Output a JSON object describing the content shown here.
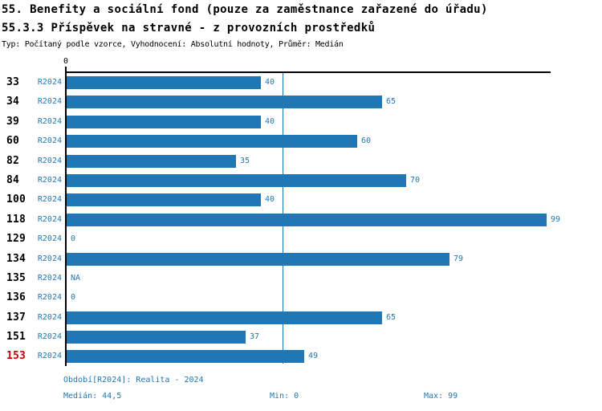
{
  "header": {
    "title": "55. Benefity a sociální fond (pouze za zaměstnance zařazené do úřadu)",
    "subtitle": "55.3.3 Příspěvek na stravné - z provozních prostředků",
    "meta": "Typ: Počítaný podle vzorce, Vyhodnocení: Absolutní hodnoty, Průměr: Medián"
  },
  "chart_data": {
    "type": "bar",
    "orientation": "horizontal",
    "categories": [
      "33",
      "34",
      "39",
      "60",
      "82",
      "84",
      "100",
      "118",
      "129",
      "134",
      "135",
      "136",
      "137",
      "151",
      "153"
    ],
    "series_label": "R2024",
    "values": [
      40,
      65,
      40,
      60,
      35,
      70,
      40,
      99,
      0,
      79,
      null,
      0,
      65,
      37,
      49
    ],
    "value_labels": [
      "40",
      "65",
      "40",
      "60",
      "35",
      "70",
      "40",
      "99",
      "0",
      "79",
      "NA",
      "0",
      "65",
      "37",
      "49"
    ],
    "xlim": [
      0,
      100
    ],
    "x_tick_labels": [
      "0"
    ],
    "median_line": 44.5,
    "highlighted_category": "153",
    "legend_position": "none",
    "grid": false
  },
  "colors": {
    "accent": "#1f77b4",
    "bar": "#2077b4",
    "highlight": "#cc0000",
    "axis": "#000000"
  },
  "footer": {
    "period": "Období[R2024]: Realita - 2024",
    "median": "Medián: 44,5",
    "min": "Min: 0",
    "max": "Max: 99"
  }
}
